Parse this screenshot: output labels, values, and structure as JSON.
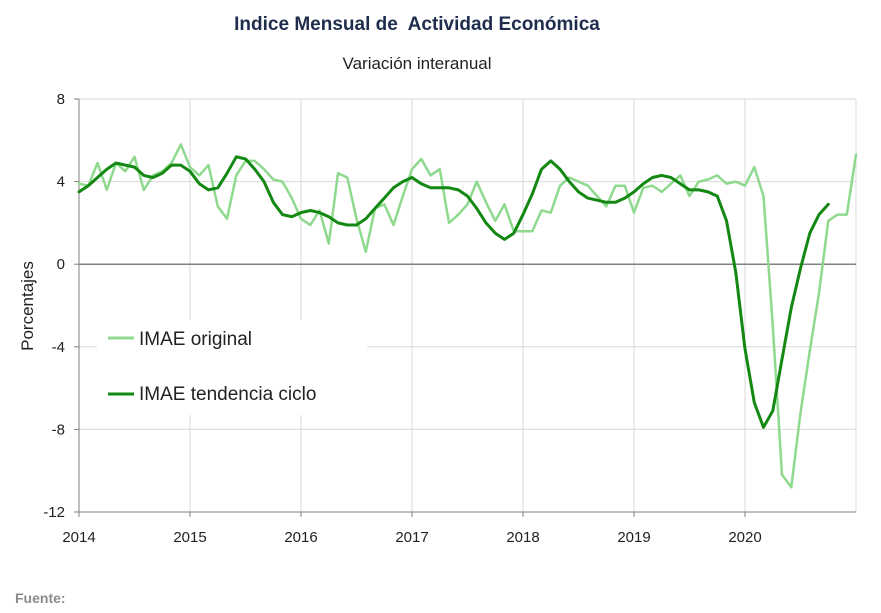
{
  "colors": {
    "original": "#8fd98f",
    "trend": "#138813",
    "grid": "#d9d9d9",
    "zero_line": "#808080",
    "axis": "#808080"
  },
  "chart_data": {
    "type": "line",
    "title": "Indice Mensual de  Actividad Económica",
    "subtitle": "Variación interanual",
    "ylabel": "Porcentajes",
    "xlabel": "",
    "ylim": [
      -12,
      8
    ],
    "yticks": [
      "8",
      "4",
      "0",
      "-4",
      "-8",
      "-12"
    ],
    "xlim": [
      0,
      84
    ],
    "xticks": [
      "2014",
      "2015",
      "2016",
      "2017",
      "2018",
      "2019",
      "2020"
    ],
    "grid": true,
    "legend_position": "center-left",
    "series": [
      {
        "name": "IMAE original",
        "color": "#8fd98f",
        "values": [
          3.9,
          3.8,
          4.9,
          3.6,
          4.9,
          4.5,
          5.2,
          3.6,
          4.3,
          4.5,
          4.9,
          5.8,
          4.7,
          4.3,
          4.8,
          2.8,
          2.2,
          4.3,
          5.0,
          5.0,
          4.6,
          4.1,
          4.0,
          3.2,
          2.2,
          1.9,
          2.6,
          1.0,
          4.4,
          4.2,
          2.2,
          0.6,
          2.7,
          2.9,
          1.9,
          3.3,
          4.6,
          5.1,
          4.3,
          4.6,
          2.0,
          2.4,
          2.9,
          4.0,
          3.0,
          2.1,
          2.9,
          1.6,
          1.6,
          1.6,
          2.6,
          2.5,
          3.8,
          4.2,
          4.0,
          3.8,
          3.3,
          2.8,
          3.8,
          3.8,
          2.5,
          3.7,
          3.8,
          3.5,
          3.9,
          4.3,
          3.3,
          4.0,
          4.1,
          4.3,
          3.9,
          4.0,
          3.8,
          4.7,
          3.3,
          -3.0,
          -10.2,
          -10.8,
          -7.2,
          -4.2,
          -1.4,
          2.1,
          2.4,
          2.4,
          5.3
        ]
      },
      {
        "name": "IMAE tendencia ciclo",
        "color": "#138813",
        "values": [
          3.5,
          3.8,
          4.2,
          4.6,
          4.9,
          4.8,
          4.7,
          4.3,
          4.2,
          4.4,
          4.8,
          4.8,
          4.5,
          3.9,
          3.6,
          3.7,
          4.4,
          5.2,
          5.1,
          4.6,
          4.0,
          3.0,
          2.4,
          2.3,
          2.5,
          2.6,
          2.5,
          2.3,
          2.0,
          1.9,
          1.9,
          2.2,
          2.7,
          3.2,
          3.7,
          4.0,
          4.2,
          3.9,
          3.7,
          3.7,
          3.7,
          3.6,
          3.3,
          2.7,
          2.0,
          1.5,
          1.2,
          1.5,
          2.4,
          3.4,
          4.6,
          5.0,
          4.6,
          4.0,
          3.5,
          3.2,
          3.1,
          3.0,
          3.0,
          3.2,
          3.5,
          3.9,
          4.2,
          4.3,
          4.2,
          3.9,
          3.6,
          3.6,
          3.5,
          3.3,
          2.1,
          -0.4,
          -4.1,
          -6.7,
          -7.9,
          -7.1,
          -4.6,
          -2.1,
          -0.2,
          1.5,
          2.4,
          2.9
        ]
      }
    ],
    "source_label": "Fuente:"
  }
}
